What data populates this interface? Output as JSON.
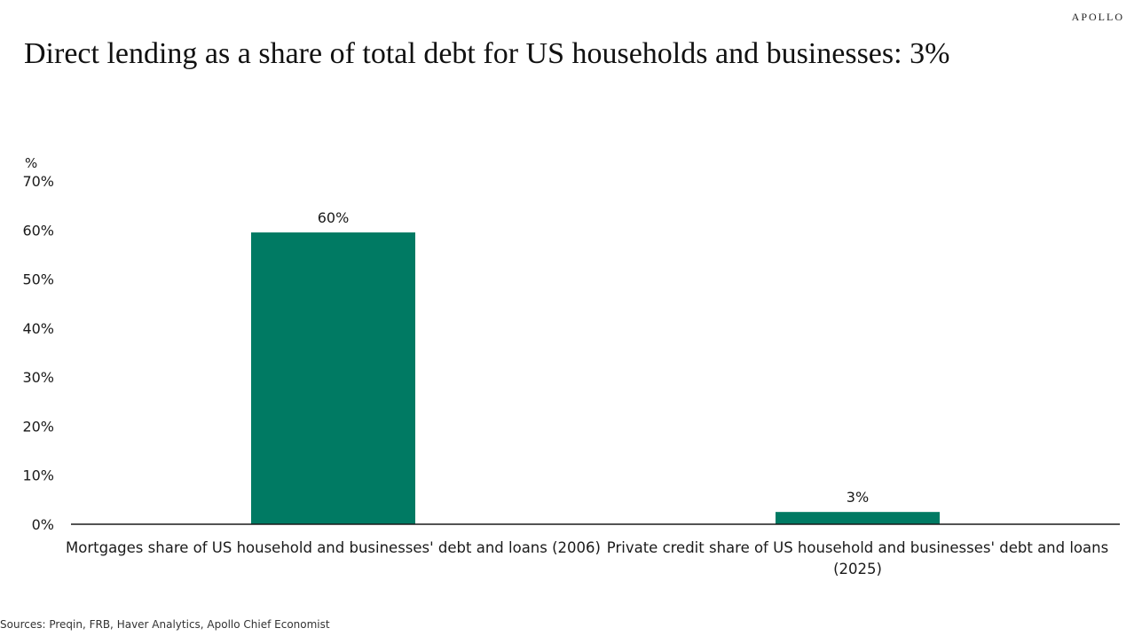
{
  "brand": "APOLLO",
  "title": "Direct lending as a share of  total debt for US households and businesses: 3%",
  "source": "Sources: Preqin, FRB, Haver Analytics, Apollo Chief Economist",
  "colors": {
    "bar": "#007A63",
    "axis": "#1a1a1a"
  },
  "chart_data": {
    "type": "bar",
    "ylabel": "%",
    "ylim": [
      0,
      70
    ],
    "yticks": [
      "0%",
      "10%",
      "20%",
      "30%",
      "40%",
      "50%",
      "60%",
      "70%"
    ],
    "ytick_values": [
      0,
      10,
      20,
      30,
      40,
      50,
      60,
      70
    ],
    "categories": [
      [
        "Mortgages share of US household and businesses' debt and loans (2006)"
      ],
      [
        "Private credit share of US household and businesses' debt and loans",
        "(2025)"
      ]
    ],
    "values": [
      59.5,
      2.5
    ],
    "data_labels": [
      "60%",
      "3%"
    ],
    "grid": false,
    "legend": "none"
  }
}
